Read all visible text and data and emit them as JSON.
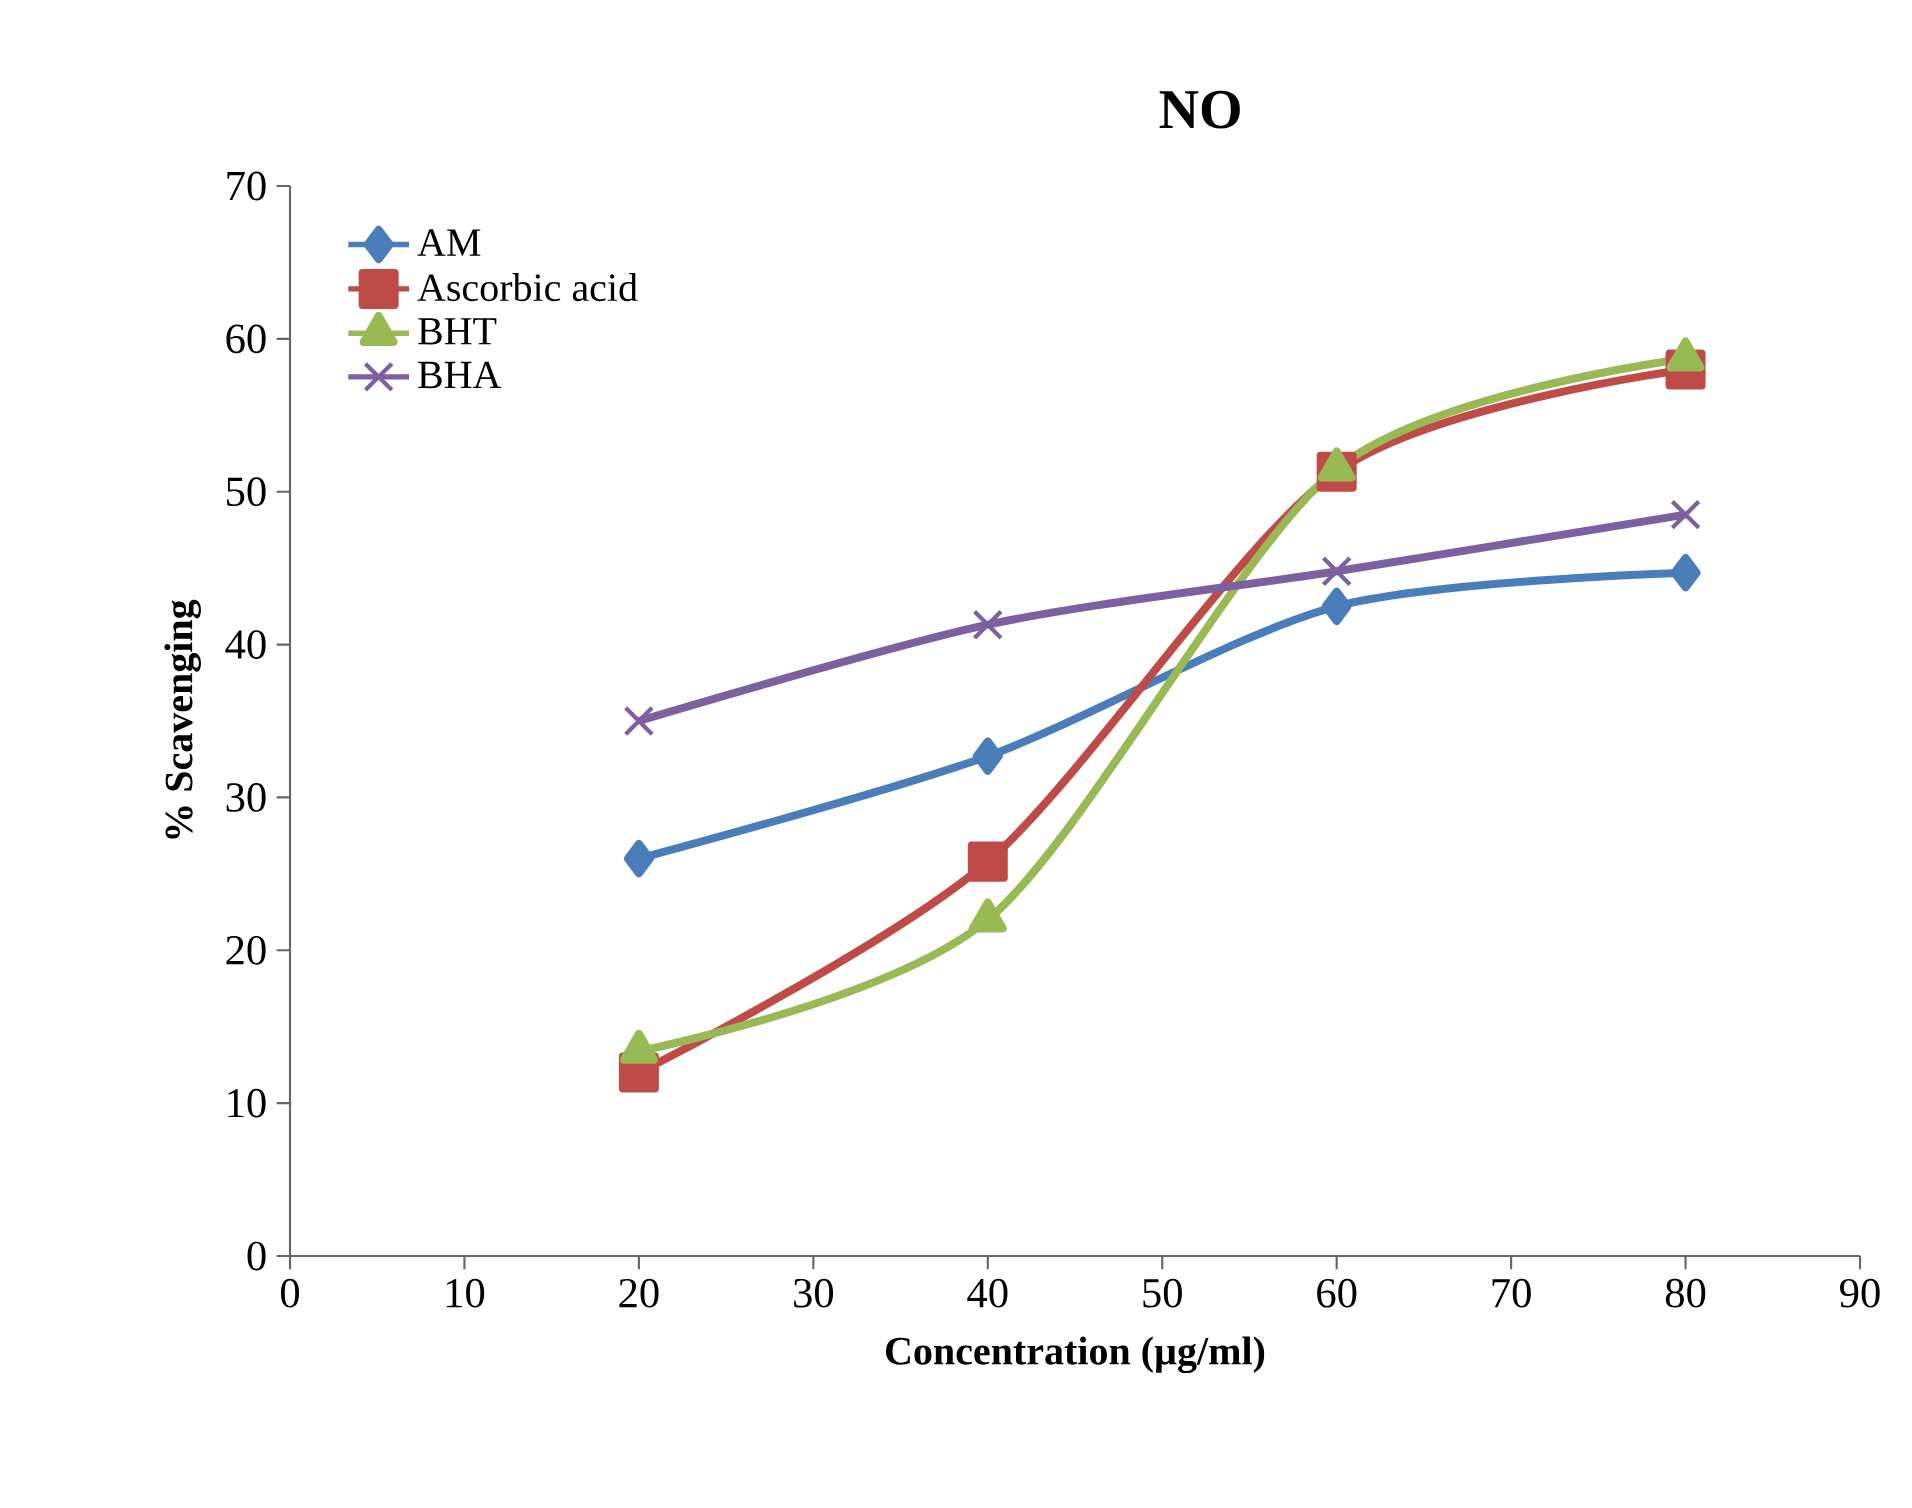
{
  "chart_data": {
    "type": "line",
    "title": "NO",
    "xlabel": "Concentration (µg/ml)",
    "ylabel": "% Scavenging",
    "x": [
      20,
      40,
      60,
      80
    ],
    "series": [
      {
        "name": "AM",
        "color": "#4a7ebb",
        "marker": "diamond",
        "values": [
          26,
          32.7,
          42.5,
          44.7
        ]
      },
      {
        "name": "Ascorbic acid",
        "color": "#be4b48",
        "marker": "square",
        "values": [
          12,
          25.8,
          51.3,
          58
        ]
      },
      {
        "name": "BHT",
        "color": "#98b954",
        "marker": "triangle",
        "values": [
          13.4,
          22,
          51.5,
          58.7
        ]
      },
      {
        "name": "BHA",
        "color": "#7d60a0",
        "marker": "cross",
        "values": [
          35,
          41.3,
          44.8,
          48.5
        ]
      }
    ],
    "xlim": [
      0,
      90
    ],
    "xticks": [
      0,
      10,
      20,
      30,
      40,
      50,
      60,
      70,
      80,
      90
    ],
    "ylim": [
      0,
      70
    ],
    "yticks": [
      0,
      10,
      20,
      30,
      40,
      50,
      60,
      70
    ],
    "legend": "top left",
    "line_style": "solid"
  }
}
